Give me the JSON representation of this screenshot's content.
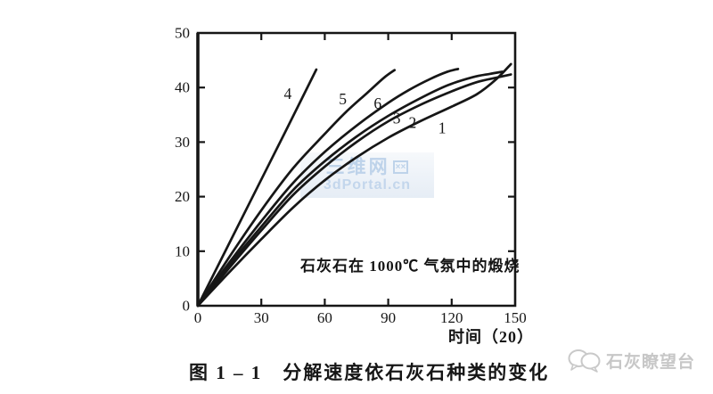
{
  "figure": {
    "caption": "图 1 – 1　分解速度依石灰石种类的变化"
  },
  "chart_data": {
    "type": "line",
    "title": "",
    "xlabel": "时间（20）",
    "ylabel": "",
    "xlim": [
      0,
      150
    ],
    "ylim": [
      0,
      50
    ],
    "xticks": [
      "0",
      "30",
      "60",
      "90",
      "120",
      "150"
    ],
    "yticks": [
      "0",
      "10",
      "20",
      "30",
      "40",
      "50"
    ],
    "grid": false,
    "legend_position": "none",
    "annotation": "石灰石在 1000℃ 气氛中的煅烧",
    "series": [
      {
        "name": "1",
        "label_pos": [
          115.5,
          32.6
        ],
        "points": [
          [
            0,
            0
          ],
          [
            15,
            6.2
          ],
          [
            30,
            12.2
          ],
          [
            45,
            18
          ],
          [
            60,
            23
          ],
          [
            75,
            27.2
          ],
          [
            90,
            30.8
          ],
          [
            105,
            33.8
          ],
          [
            120,
            36.5
          ],
          [
            132,
            38.8
          ],
          [
            141,
            41.5
          ],
          [
            148,
            44.3
          ]
        ]
      },
      {
        "name": "2",
        "label_pos": [
          101.5,
          33.6
        ],
        "points": [
          [
            0,
            0
          ],
          [
            15,
            7
          ],
          [
            30,
            13.8
          ],
          [
            45,
            20.3
          ],
          [
            60,
            25.5
          ],
          [
            75,
            30
          ],
          [
            90,
            33.8
          ],
          [
            105,
            36.8
          ],
          [
            120,
            39.3
          ],
          [
            132,
            41
          ],
          [
            141,
            41.8
          ],
          [
            148,
            42.4
          ]
        ]
      },
      {
        "name": "3",
        "label_pos": [
          94,
          34.4
        ],
        "points": [
          [
            0,
            0
          ],
          [
            15,
            7.5
          ],
          [
            30,
            14.5
          ],
          [
            45,
            21.2
          ],
          [
            60,
            26.5
          ],
          [
            75,
            31
          ],
          [
            90,
            34.8
          ],
          [
            105,
            38
          ],
          [
            118,
            40.4
          ],
          [
            130,
            41.9
          ],
          [
            138,
            42.5
          ],
          [
            144,
            42.9
          ]
        ]
      },
      {
        "name": "6",
        "label_pos": [
          85,
          37.1
        ],
        "points": [
          [
            0,
            0
          ],
          [
            15,
            8
          ],
          [
            30,
            15.5
          ],
          [
            45,
            22.5
          ],
          [
            60,
            28.2
          ],
          [
            75,
            33
          ],
          [
            90,
            37.2
          ],
          [
            100,
            39.6
          ],
          [
            110,
            41.6
          ],
          [
            118,
            42.9
          ],
          [
            123,
            43.4
          ]
        ]
      },
      {
        "name": "5",
        "label_pos": [
          68.5,
          37.9
        ],
        "points": [
          [
            0,
            0
          ],
          [
            15,
            9
          ],
          [
            30,
            17.5
          ],
          [
            45,
            25.2
          ],
          [
            60,
            31.5
          ],
          [
            70,
            35.5
          ],
          [
            80,
            39
          ],
          [
            88,
            41.8
          ],
          [
            93,
            43.2
          ]
        ]
      },
      {
        "name": "4",
        "label_pos": [
          42.5,
          38.9
        ],
        "points": [
          [
            0,
            0
          ],
          [
            14,
            10.8
          ],
          [
            28,
            21.6
          ],
          [
            42,
            32.4
          ],
          [
            56,
            43.3
          ]
        ]
      }
    ]
  },
  "watermark_center": {
    "line1": "三维网",
    "line1_icon": "××",
    "line2": "3dPortal.cn"
  },
  "brand": {
    "text": "石灰瞭望台"
  }
}
